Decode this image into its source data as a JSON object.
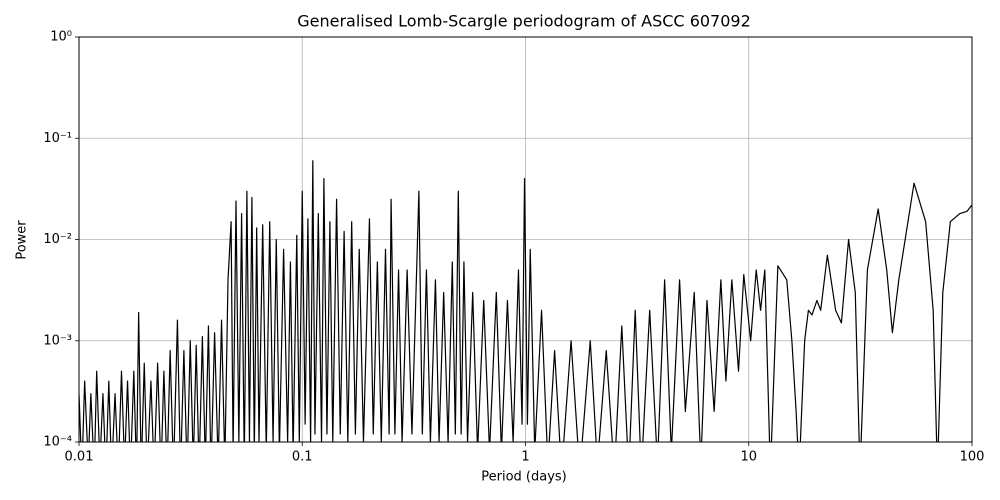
{
  "chart_data": {
    "type": "line",
    "title": "Generalised Lomb-Scargle periodogram of ASCC 607092",
    "xlabel": "Period (days)",
    "ylabel": "Power",
    "xscale": "log",
    "yscale": "log",
    "grid": true,
    "color": "#000000",
    "xlim": [
      0.01,
      100
    ],
    "xticks": [
      0.01,
      0.1,
      1,
      10,
      100
    ],
    "ylim": [
      0.0001,
      1
    ],
    "yticks": [
      {
        "value": 0.0001,
        "label": "10⁻⁴"
      },
      {
        "value": 0.001,
        "label": "10⁻³"
      },
      {
        "value": 0.01,
        "label": "10⁻²"
      },
      {
        "value": 0.1,
        "label": "10⁻¹"
      },
      {
        "value": 1,
        "label": "10⁰"
      }
    ],
    "x": [
      0.01,
      0.0103,
      0.0106,
      0.011,
      0.0113,
      0.0117,
      0.012,
      0.0124,
      0.0128,
      0.0132,
      0.0136,
      0.014,
      0.0145,
      0.015,
      0.0155,
      0.016,
      0.0165,
      0.017,
      0.0176,
      0.0181,
      0.0185,
      0.019,
      0.0196,
      0.0202,
      0.021,
      0.0217,
      0.0225,
      0.0233,
      0.024,
      0.0248,
      0.0256,
      0.0265,
      0.0276,
      0.0285,
      0.0295,
      0.0305,
      0.0315,
      0.0325,
      0.0335,
      0.0345,
      0.0357,
      0.0368,
      0.038,
      0.039,
      0.0405,
      0.042,
      0.0435,
      0.045,
      0.0465,
      0.048,
      0.049,
      0.0505,
      0.052,
      0.0535,
      0.055,
      0.0565,
      0.058,
      0.0595,
      0.061,
      0.0625,
      0.064,
      0.0665,
      0.069,
      0.0715,
      0.074,
      0.0765,
      0.079,
      0.0825,
      0.086,
      0.0885,
      0.091,
      0.0945,
      0.097,
      0.1,
      0.103,
      0.106,
      0.109,
      0.1115,
      0.114,
      0.118,
      0.122,
      0.125,
      0.129,
      0.133,
      0.137,
      0.1425,
      0.148,
      0.154,
      0.16,
      0.1665,
      0.173,
      0.18,
      0.188,
      0.2,
      0.208,
      0.217,
      0.226,
      0.236,
      0.245,
      0.25,
      0.26,
      0.27,
      0.28,
      0.295,
      0.31,
      0.333,
      0.345,
      0.36,
      0.375,
      0.395,
      0.41,
      0.43,
      0.45,
      0.47,
      0.485,
      0.5,
      0.515,
      0.53,
      0.55,
      0.58,
      0.61,
      0.65,
      0.69,
      0.74,
      0.78,
      0.83,
      0.88,
      0.93,
      0.965,
      0.99,
      1.02,
      1.05,
      1.1,
      1.18,
      1.26,
      1.35,
      1.45,
      1.6,
      1.75,
      1.95,
      2.1,
      2.3,
      2.5,
      2.7,
      2.9,
      3.1,
      3.3,
      3.6,
      3.9,
      4.2,
      4.5,
      4.9,
      5.2,
      5.7,
      6.1,
      6.5,
      7.0,
      7.5,
      7.9,
      8.4,
      9.0,
      9.5,
      10.2,
      10.8,
      11.3,
      11.8,
      12.5,
      13.5,
      14.8,
      15.6,
      16.3,
      16.8,
      17.8,
      18.5,
      19.2,
      20.2,
      21,
      22.5,
      24.5,
      26,
      28,
      30,
      31.5,
      34,
      38,
      41.5,
      44,
      47,
      55,
      62,
      67,
      70,
      74,
      80,
      88,
      95,
      100
    ],
    "values": [
      0.0003,
      5e-05,
      0.0004,
      6e-05,
      0.0003,
      5e-05,
      0.0005,
      6e-05,
      0.0003,
      5e-05,
      0.0004,
      5e-05,
      0.0003,
      5e-05,
      0.0005,
      6e-05,
      0.0004,
      5e-05,
      0.0005,
      5e-05,
      0.0019,
      5e-05,
      0.0006,
      5e-05,
      0.0004,
      5e-05,
      0.0006,
      5e-05,
      0.0005,
      5e-05,
      0.0008,
      5e-05,
      0.0016,
      5e-05,
      0.0008,
      5e-05,
      0.001,
      6e-05,
      0.0009,
      5e-05,
      0.0011,
      6e-05,
      0.0014,
      5e-05,
      0.0012,
      6e-05,
      0.0016,
      6e-05,
      0.004,
      0.015,
      8e-05,
      0.024,
      0.0001,
      0.018,
      6e-05,
      0.03,
      0.0001,
      0.026,
      8e-05,
      0.013,
      0.0001,
      0.014,
      8e-05,
      0.015,
      0.0001,
      0.01,
      8e-05,
      0.008,
      0.0001,
      0.006,
      8e-05,
      0.011,
      0.0001,
      0.03,
      0.00015,
      0.016,
      0.0001,
      0.06,
      0.00012,
      0.018,
      0.0001,
      0.04,
      0.00012,
      0.015,
      0.0001,
      0.025,
      0.00012,
      0.012,
      0.0001,
      0.015,
      0.00012,
      0.008,
      0.0001,
      0.016,
      0.00012,
      0.006,
      0.0001,
      0.008,
      0.00012,
      0.025,
      0.00012,
      0.005,
      0.0001,
      0.005,
      0.00012,
      0.03,
      0.00012,
      0.005,
      0.0001,
      0.004,
      0.0001,
      0.003,
      0.0001,
      0.006,
      0.00012,
      0.03,
      0.00012,
      0.006,
      0.0001,
      0.003,
      8e-05,
      0.0025,
      8e-05,
      0.003,
      8e-05,
      0.0025,
      0.0001,
      0.005,
      0.00015,
      0.04,
      0.00015,
      0.008,
      8e-05,
      0.002,
      6e-05,
      0.0008,
      5e-05,
      0.001,
      5e-05,
      0.001,
      6e-05,
      0.0008,
      5e-05,
      0.0014,
      5e-05,
      0.002,
      5e-05,
      0.002,
      6e-05,
      0.004,
      8e-05,
      0.004,
      0.0002,
      0.003,
      6e-05,
      0.0025,
      0.0002,
      0.004,
      0.0004,
      0.004,
      0.0005,
      0.0045,
      0.001,
      0.005,
      0.002,
      0.005,
      5e-05,
      0.0055,
      0.004,
      0.001,
      0.0002,
      5e-05,
      0.001,
      0.002,
      0.0018,
      0.0025,
      0.002,
      0.007,
      0.002,
      0.0015,
      0.01,
      0.003,
      5e-05,
      0.005,
      0.02,
      0.005,
      0.0012,
      0.004,
      0.036,
      0.015,
      0.002,
      5e-05,
      0.003,
      0.015,
      0.018,
      0.019,
      0.022
    ]
  }
}
